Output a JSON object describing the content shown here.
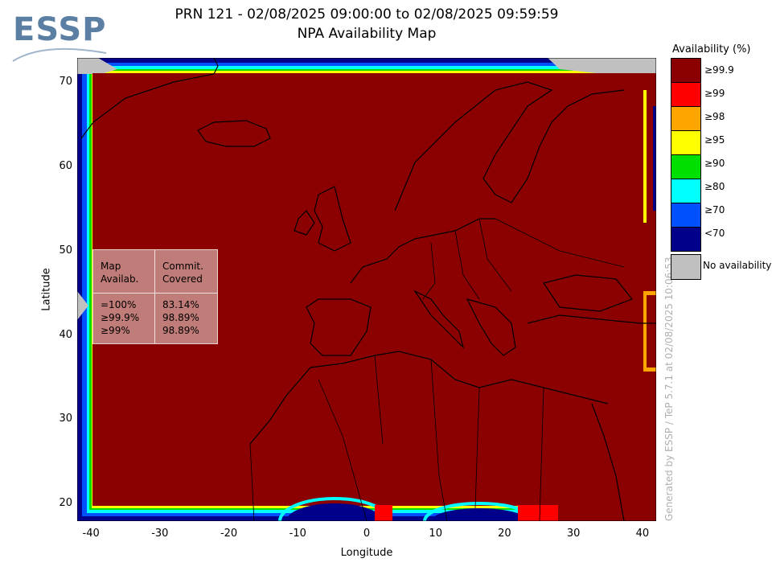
{
  "logo": {
    "text": "ESSP"
  },
  "header": {
    "title_line1": "PRN 121 - 02/08/2025 09:00:00 to 02/08/2025 09:59:59",
    "title_line2": "NPA Availability Map"
  },
  "axes": {
    "xlabel": "Longitude",
    "ylabel": "Latitude",
    "xticks": [
      "-40",
      "-30",
      "-20",
      "-10",
      "0",
      "10",
      "20",
      "30",
      "40"
    ],
    "yticks": [
      "70",
      "60",
      "50",
      "40",
      "30",
      "20"
    ],
    "xlim": [
      -42,
      42
    ],
    "ylim": [
      18,
      73
    ]
  },
  "legend": {
    "title": "Availability (%)",
    "items": [
      {
        "label": "≥99.9",
        "color": "#8b0000"
      },
      {
        "label": "≥99",
        "color": "#ff0000"
      },
      {
        "label": "≥98",
        "color": "#ffa500"
      },
      {
        "label": "≥95",
        "color": "#ffff00"
      },
      {
        "label": "≥90",
        "color": "#00e000"
      },
      {
        "label": "≥80",
        "color": "#00ffff"
      },
      {
        "label": "≥70",
        "color": "#0050ff"
      },
      {
        "label": "<70",
        "color": "#00008b"
      }
    ],
    "no_availability_label": "No availability",
    "no_availability_color": "#c0c0c0"
  },
  "stats_box": {
    "col1_header_line1": "Map",
    "col1_header_line2": "Availab.",
    "col2_header_line1": "Commit.",
    "col2_header_line2": "Covered",
    "rows": [
      {
        "level": "=100%",
        "covered": "83.14%"
      },
      {
        "level": "≥99.9%",
        "covered": "98.89%"
      },
      {
        "level": "≥99%",
        "covered": "98.89%"
      }
    ]
  },
  "watermark": "Generated by ESSP / TeP 5.7.1 at 02/08/2025 10:06:53"
}
